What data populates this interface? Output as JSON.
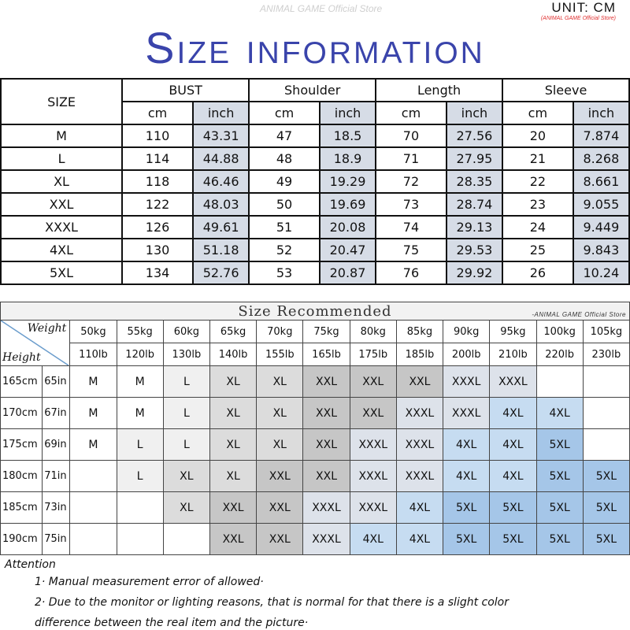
{
  "header": {
    "title": "Size information",
    "watermark": "ANIMAL GAME Official Store",
    "unit": "UNIT: CM",
    "unit_store": "(ANIMAL GAME Official Store)"
  },
  "size_table": {
    "size_label": "SIZE",
    "groups": [
      "BUST",
      "Shoulder",
      "Length",
      "Sleeve"
    ],
    "sub_labels": [
      "cm",
      "inch"
    ],
    "rows": [
      [
        "M",
        "110",
        "43.31",
        "47",
        "18.5",
        "70",
        "27.56",
        "20",
        "7.874"
      ],
      [
        "L",
        "114",
        "44.88",
        "48",
        "18.9",
        "71",
        "27.95",
        "21",
        "8.268"
      ],
      [
        "XL",
        "118",
        "46.46",
        "49",
        "19.29",
        "72",
        "28.35",
        "22",
        "8.661"
      ],
      [
        "XXL",
        "122",
        "48.03",
        "50",
        "19.69",
        "73",
        "28.74",
        "23",
        "9.055"
      ],
      [
        "XXXL",
        "126",
        "49.61",
        "51",
        "20.08",
        "74",
        "29.13",
        "24",
        "9.449"
      ],
      [
        "4XL",
        "130",
        "51.18",
        "52",
        "20.47",
        "75",
        "29.53",
        "25",
        "9.843"
      ],
      [
        "5XL",
        "134",
        "52.76",
        "53",
        "20.87",
        "76",
        "29.92",
        "26",
        "10.24"
      ]
    ]
  },
  "recommend": {
    "title": "Size Recommended",
    "store": "-ANIMAL GAME Official Store",
    "weight_label": "Weight",
    "height_label": "Height",
    "kg": [
      "50kg",
      "55kg",
      "60kg",
      "65kg",
      "70kg",
      "75kg",
      "80kg",
      "85kg",
      "90kg",
      "95kg",
      "100kg",
      "105kg"
    ],
    "lb": [
      "110lb",
      "120lb",
      "130lb",
      "140lb",
      "155lb",
      "165lb",
      "175lb",
      "185lb",
      "200lb",
      "210lb",
      "220lb",
      "230lb"
    ],
    "rows": [
      {
        "cm": "165cm",
        "in": "65in",
        "sizes": [
          "M",
          "M",
          "L",
          "XL",
          "XL",
          "XXL",
          "XXL",
          "XXL",
          "XXXL",
          "XXXL",
          "",
          ""
        ]
      },
      {
        "cm": "170cm",
        "in": "67in",
        "sizes": [
          "M",
          "M",
          "L",
          "XL",
          "XL",
          "XXL",
          "XXL",
          "XXXL",
          "XXXL",
          "4XL",
          "4XL",
          ""
        ]
      },
      {
        "cm": "175cm",
        "in": "69in",
        "sizes": [
          "M",
          "L",
          "L",
          "XL",
          "XL",
          "XXL",
          "XXXL",
          "XXXL",
          "4XL",
          "4XL",
          "5XL",
          ""
        ]
      },
      {
        "cm": "180cm",
        "in": "71in",
        "sizes": [
          "",
          "L",
          "XL",
          "XL",
          "XXL",
          "XXL",
          "XXXL",
          "XXXL",
          "4XL",
          "4XL",
          "5XL",
          "5XL"
        ]
      },
      {
        "cm": "185cm",
        "in": "73in",
        "sizes": [
          "",
          "",
          "XL",
          "XXL",
          "XXL",
          "XXXL",
          "XXXL",
          "4XL",
          "5XL",
          "5XL",
          "5XL",
          "5XL"
        ]
      },
      {
        "cm": "190cm",
        "in": "75in",
        "sizes": [
          "",
          "",
          "",
          "XXL",
          "XXL",
          "XXXL",
          "4XL",
          "4XL",
          "5XL",
          "5XL",
          "5XL",
          "5XL"
        ]
      }
    ],
    "size_colors": {
      "M": "#ffffff",
      "L": "#f0f0f0",
      "XL": "#dcdcdc",
      "XXL": "#c6c6c6",
      "XXXL": "#dde2ea",
      "4XL": "#c6dcf1",
      "5XL": "#a5c6e8",
      "": "#ffffff"
    }
  },
  "attention": {
    "title": "Attention",
    "notes": [
      "1· Manual measurement error of allowed·",
      "2·  Due to the monitor or lighting reasons, that is normal for that there is a slight color",
      "difference between the real item and the picture·"
    ]
  }
}
